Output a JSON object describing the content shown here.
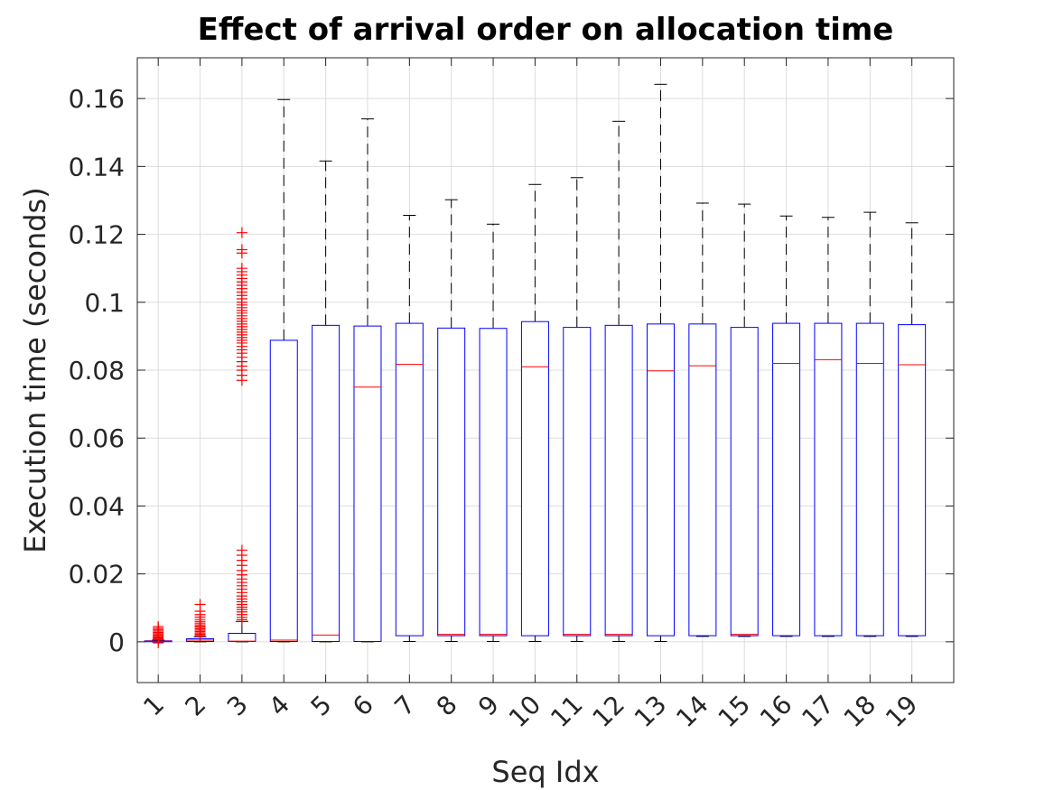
{
  "chart_data": {
    "type": "boxplot",
    "title": "Effect of arrival order on allocation time",
    "xlabel": "Seq Idx",
    "ylabel": "Execution time (seconds)",
    "ylim": [
      -0.012,
      0.172
    ],
    "yticks": [
      0,
      0.02,
      0.04,
      0.06,
      0.08,
      0.1,
      0.12,
      0.14,
      0.16
    ],
    "ytick_labels": [
      "0",
      "0.02",
      "0.04",
      "0.06",
      "0.08",
      "0.1",
      "0.12",
      "0.14",
      "0.16"
    ],
    "categories": [
      "1",
      "2",
      "3",
      "4",
      "5",
      "6",
      "7",
      "8",
      "9",
      "10",
      "11",
      "12",
      "13",
      "14",
      "15",
      "16",
      "17",
      "18",
      "19"
    ],
    "grid": true,
    "colors": {
      "box": "#0000ff",
      "median": "#ff0000",
      "whisker": "#000000",
      "outlier": "#ff0000",
      "grid": "#dddddd",
      "axes": "#262626"
    },
    "boxes": [
      {
        "whisker_low": 0.0,
        "q1": 0.0001,
        "median": 0.0002,
        "q3": 0.0003,
        "whisker_high": 0.0005
      },
      {
        "whisker_low": 0.0,
        "q1": 0.0001,
        "median": 0.0005,
        "q3": 0.0009,
        "whisker_high": 0.0015
      },
      {
        "whisker_low": 0.0,
        "q1": 0.0001,
        "median": 0.0002,
        "q3": 0.0025,
        "whisker_high": 0.006
      },
      {
        "whisker_low": 0.0,
        "q1": 0.0001,
        "median": 0.0005,
        "q3": 0.0888,
        "whisker_high": 0.1597
      },
      {
        "whisker_low": 0.0,
        "q1": 0.0001,
        "median": 0.002,
        "q3": 0.0932,
        "whisker_high": 0.1416
      },
      {
        "whisker_low": 0.0,
        "q1": 0.0001,
        "median": 0.075,
        "q3": 0.093,
        "whisker_high": 0.154
      },
      {
        "whisker_low": 0.0001,
        "q1": 0.0018,
        "median": 0.0817,
        "q3": 0.0938,
        "whisker_high": 0.1256
      },
      {
        "whisker_low": 0.0001,
        "q1": 0.0018,
        "median": 0.0022,
        "q3": 0.0924,
        "whisker_high": 0.1302
      },
      {
        "whisker_low": 0.0001,
        "q1": 0.0018,
        "median": 0.0022,
        "q3": 0.0923,
        "whisker_high": 0.123
      },
      {
        "whisker_low": 0.0001,
        "q1": 0.0018,
        "median": 0.081,
        "q3": 0.0943,
        "whisker_high": 0.1347
      },
      {
        "whisker_low": 0.0001,
        "q1": 0.0018,
        "median": 0.0022,
        "q3": 0.0926,
        "whisker_high": 0.1367
      },
      {
        "whisker_low": 0.0001,
        "q1": 0.0018,
        "median": 0.0022,
        "q3": 0.0932,
        "whisker_high": 0.1533
      },
      {
        "whisker_low": 0.0001,
        "q1": 0.0018,
        "median": 0.0798,
        "q3": 0.0936,
        "whisker_high": 0.1642
      },
      {
        "whisker_low": 0.0016,
        "q1": 0.0018,
        "median": 0.0813,
        "q3": 0.0936,
        "whisker_high": 0.1292
      },
      {
        "whisker_low": 0.0016,
        "q1": 0.0018,
        "median": 0.0022,
        "q3": 0.0926,
        "whisker_high": 0.1289
      },
      {
        "whisker_low": 0.0016,
        "q1": 0.0018,
        "median": 0.082,
        "q3": 0.0938,
        "whisker_high": 0.1254
      },
      {
        "whisker_low": 0.0016,
        "q1": 0.0018,
        "median": 0.0831,
        "q3": 0.0938,
        "whisker_high": 0.125
      },
      {
        "whisker_low": 0.0016,
        "q1": 0.0018,
        "median": 0.082,
        "q3": 0.0938,
        "whisker_high": 0.1265
      },
      {
        "whisker_low": 0.0016,
        "q1": 0.0018,
        "median": 0.0816,
        "q3": 0.0934,
        "whisker_high": 0.1234
      }
    ],
    "outliers": [
      {
        "category": "1",
        "values": [
          -0.0003,
          0.0007,
          0.001,
          0.0013,
          0.0016,
          0.002,
          0.0024,
          0.0028,
          0.0032,
          0.0036,
          0.004,
          0.0045
        ]
      },
      {
        "category": "2",
        "values": [
          0.0018,
          0.0022,
          0.0026,
          0.003,
          0.0034,
          0.0038,
          0.0042,
          0.0046,
          0.005,
          0.0055,
          0.006,
          0.0066,
          0.0073,
          0.008,
          0.009,
          0.011
        ]
      },
      {
        "category": "3",
        "values": [
          0.0065,
          0.0072,
          0.008,
          0.0088,
          0.0095,
          0.0102,
          0.011,
          0.0118,
          0.0126,
          0.0135,
          0.0145,
          0.0155,
          0.0165,
          0.0175,
          0.0185,
          0.0197,
          0.021,
          0.0225,
          0.024,
          0.0255,
          0.027,
          0.077,
          0.0785,
          0.08,
          0.0812,
          0.0825,
          0.0838,
          0.085,
          0.086,
          0.087,
          0.088,
          0.0888,
          0.0896,
          0.0904,
          0.0912,
          0.092,
          0.0928,
          0.0936,
          0.0944,
          0.0952,
          0.096,
          0.0968,
          0.0976,
          0.0984,
          0.0992,
          0.1,
          0.101,
          0.102,
          0.103,
          0.104,
          0.105,
          0.106,
          0.107,
          0.108,
          0.109,
          0.11,
          0.1145,
          0.1155,
          0.1205
        ]
      }
    ]
  }
}
